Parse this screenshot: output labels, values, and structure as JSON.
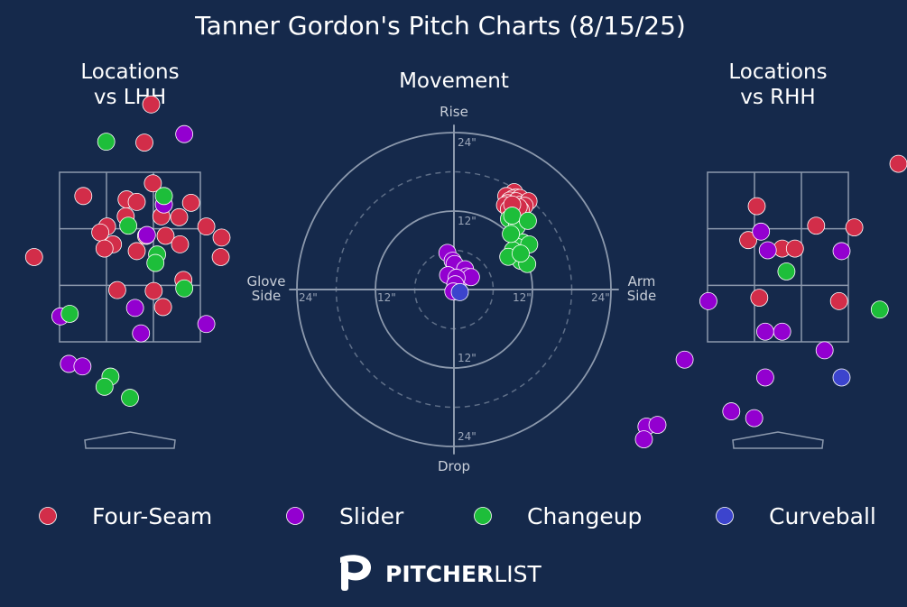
{
  "chart_data": {
    "type": "scatter",
    "title": "Tanner Gordon's Pitch Charts (8/15/25)",
    "colors": {
      "background": "#15294b",
      "Four-Seam": "#d22d49",
      "Slider": "#9300d0",
      "Changeup": "#1dbe3a",
      "Curveball": "#3c44cd"
    },
    "legend": {
      "placement": "bottom",
      "items": [
        "Four-Seam",
        "Slider",
        "Changeup",
        "Curveball"
      ]
    },
    "panels": [
      {
        "id": "lhh",
        "title": "Locations\nvs LHH",
        "x_unit": "ft from plate center",
        "y_unit": "ft above ground",
        "points": [
          {
            "pitch": "Four-Seam",
            "x": 0.25,
            "y": 4.3
          },
          {
            "pitch": "Four-Seam",
            "x": 0.17,
            "y": 3.85
          },
          {
            "pitch": "Four-Seam",
            "x": 0.27,
            "y": 3.37
          },
          {
            "pitch": "Four-Seam",
            "x": -0.55,
            "y": 3.22
          },
          {
            "pitch": "Four-Seam",
            "x": -0.04,
            "y": 3.18
          },
          {
            "pitch": "Four-Seam",
            "x": 0.08,
            "y": 3.15
          },
          {
            "pitch": "Four-Seam",
            "x": 0.72,
            "y": 3.14
          },
          {
            "pitch": "Four-Seam",
            "x": -0.05,
            "y": 2.98
          },
          {
            "pitch": "Four-Seam",
            "x": 0.37,
            "y": 2.98
          },
          {
            "pitch": "Four-Seam",
            "x": 0.58,
            "y": 2.97
          },
          {
            "pitch": "Four-Seam",
            "x": -0.27,
            "y": 2.86
          },
          {
            "pitch": "Four-Seam",
            "x": 0.9,
            "y": 2.86
          },
          {
            "pitch": "Four-Seam",
            "x": -0.35,
            "y": 2.79
          },
          {
            "pitch": "Four-Seam",
            "x": 0.19,
            "y": 2.75
          },
          {
            "pitch": "Four-Seam",
            "x": 0.42,
            "y": 2.75
          },
          {
            "pitch": "Four-Seam",
            "x": 1.08,
            "y": 2.73
          },
          {
            "pitch": "Four-Seam",
            "x": -0.2,
            "y": 2.65
          },
          {
            "pitch": "Four-Seam",
            "x": 0.59,
            "y": 2.65
          },
          {
            "pitch": "Four-Seam",
            "x": -0.3,
            "y": 2.6
          },
          {
            "pitch": "Four-Seam",
            "x": 0.08,
            "y": 2.57
          },
          {
            "pitch": "Four-Seam",
            "x": -1.13,
            "y": 2.5
          },
          {
            "pitch": "Four-Seam",
            "x": 1.07,
            "y": 2.5
          },
          {
            "pitch": "Four-Seam",
            "x": 0.63,
            "y": 2.23
          },
          {
            "pitch": "Four-Seam",
            "x": -0.15,
            "y": 2.11
          },
          {
            "pitch": "Four-Seam",
            "x": 0.28,
            "y": 2.1
          },
          {
            "pitch": "Four-Seam",
            "x": 0.39,
            "y": 1.91
          },
          {
            "pitch": "Slider",
            "x": 0.64,
            "y": 3.95
          },
          {
            "pitch": "Slider",
            "x": 0.4,
            "y": 3.12
          },
          {
            "pitch": "Slider",
            "x": 0.2,
            "y": 2.76
          },
          {
            "pitch": "Slider",
            "x": 0.06,
            "y": 1.9
          },
          {
            "pitch": "Slider",
            "x": -0.82,
            "y": 1.8
          },
          {
            "pitch": "Slider",
            "x": 0.9,
            "y": 1.71
          },
          {
            "pitch": "Slider",
            "x": 0.13,
            "y": 1.6
          },
          {
            "pitch": "Slider",
            "x": -0.72,
            "y": 1.24
          },
          {
            "pitch": "Slider",
            "x": -0.56,
            "y": 1.21
          },
          {
            "pitch": "Changeup",
            "x": -0.28,
            "y": 3.86
          },
          {
            "pitch": "Changeup",
            "x": 0.4,
            "y": 3.22
          },
          {
            "pitch": "Changeup",
            "x": -0.02,
            "y": 2.87
          },
          {
            "pitch": "Changeup",
            "x": 0.32,
            "y": 2.53
          },
          {
            "pitch": "Changeup",
            "x": 0.3,
            "y": 2.43
          },
          {
            "pitch": "Changeup",
            "x": 0.64,
            "y": 2.13
          },
          {
            "pitch": "Changeup",
            "x": -0.71,
            "y": 1.83
          },
          {
            "pitch": "Changeup",
            "x": -0.23,
            "y": 1.09
          },
          {
            "pitch": "Changeup",
            "x": -0.3,
            "y": 0.97
          },
          {
            "pitch": "Changeup",
            "x": -0.0,
            "y": 0.84
          }
        ]
      },
      {
        "id": "movement",
        "title": "Movement",
        "axis_labels": {
          "top": "Rise",
          "bottom": "Drop",
          "left": "Glove\nSide",
          "right": "Arm\nSide"
        },
        "ring_labels": [
          "12\"",
          "24\""
        ],
        "rings_in": [
          6,
          12,
          18,
          24
        ],
        "points": [
          {
            "pitch": "Four-Seam",
            "x": 9.2,
            "y": 14.9
          },
          {
            "pitch": "Four-Seam",
            "x": 8.0,
            "y": 14.3
          },
          {
            "pitch": "Four-Seam",
            "x": 9.5,
            "y": 14.1
          },
          {
            "pitch": "Four-Seam",
            "x": 9.0,
            "y": 13.9
          },
          {
            "pitch": "Four-Seam",
            "x": 10.1,
            "y": 14.0
          },
          {
            "pitch": "Four-Seam",
            "x": 8.5,
            "y": 13.6
          },
          {
            "pitch": "Four-Seam",
            "x": 9.5,
            "y": 13.5
          },
          {
            "pitch": "Four-Seam",
            "x": 8.2,
            "y": 13.2
          },
          {
            "pitch": "Four-Seam",
            "x": 10.2,
            "y": 13.0
          },
          {
            "pitch": "Four-Seam",
            "x": 11.4,
            "y": 13.5
          },
          {
            "pitch": "Four-Seam",
            "x": 9.1,
            "y": 12.8
          },
          {
            "pitch": "Four-Seam",
            "x": 10.8,
            "y": 12.8
          },
          {
            "pitch": "Four-Seam",
            "x": 7.8,
            "y": 12.9
          },
          {
            "pitch": "Four-Seam",
            "x": 8.4,
            "y": 12.3
          },
          {
            "pitch": "Four-Seam",
            "x": 10.2,
            "y": 12.2
          },
          {
            "pitch": "Four-Seam",
            "x": 9.2,
            "y": 12.0
          },
          {
            "pitch": "Four-Seam",
            "x": 9.9,
            "y": 12.6
          },
          {
            "pitch": "Four-Seam",
            "x": 8.9,
            "y": 13.0
          },
          {
            "pitch": "Changeup",
            "x": 10.5,
            "y": 7.2
          },
          {
            "pitch": "Changeup",
            "x": 9.7,
            "y": 6.5
          },
          {
            "pitch": "Changeup",
            "x": 9.0,
            "y": 6.0
          },
          {
            "pitch": "Changeup",
            "x": 10.2,
            "y": 4.4
          },
          {
            "pitch": "Changeup",
            "x": 11.2,
            "y": 3.9
          },
          {
            "pitch": "Changeup",
            "x": 8.3,
            "y": 5.0
          },
          {
            "pitch": "Changeup",
            "x": 8.4,
            "y": 10.8
          },
          {
            "pitch": "Changeup",
            "x": 9.6,
            "y": 9.6
          },
          {
            "pitch": "Changeup",
            "x": 8.9,
            "y": 11.3
          },
          {
            "pitch": "Changeup",
            "x": 8.7,
            "y": 8.5
          },
          {
            "pitch": "Changeup",
            "x": 11.5,
            "y": 6.9
          },
          {
            "pitch": "Changeup",
            "x": 11.3,
            "y": 10.5
          },
          {
            "pitch": "Changeup",
            "x": 10.2,
            "y": 5.5
          },
          {
            "pitch": "Slider",
            "x": -1.0,
            "y": 5.6
          },
          {
            "pitch": "Slider",
            "x": -0.2,
            "y": 4.4
          },
          {
            "pitch": "Slider",
            "x": 0.1,
            "y": 3.9
          },
          {
            "pitch": "Slider",
            "x": 1.7,
            "y": 3.1
          },
          {
            "pitch": "Slider",
            "x": 1.9,
            "y": 2.0
          },
          {
            "pitch": "Slider",
            "x": -0.9,
            "y": 2.2
          },
          {
            "pitch": "Slider",
            "x": 2.6,
            "y": 1.9
          },
          {
            "pitch": "Slider",
            "x": 0.4,
            "y": 1.8
          },
          {
            "pitch": "Slider",
            "x": 0.2,
            "y": 0.8
          },
          {
            "pitch": "Slider",
            "x": -0.1,
            "y": -0.3
          },
          {
            "pitch": "Curveball",
            "x": 0.9,
            "y": -0.4
          }
        ]
      },
      {
        "id": "rhh",
        "title": "Locations\nvs RHH",
        "x_unit": "ft from plate center",
        "y_unit": "ft above ground",
        "points": [
          {
            "pitch": "Four-Seam",
            "x": -0.25,
            "y": 3.1
          },
          {
            "pitch": "Four-Seam",
            "x": 0.45,
            "y": 2.87
          },
          {
            "pitch": "Four-Seam",
            "x": 0.9,
            "y": 2.85
          },
          {
            "pitch": "Four-Seam",
            "x": -0.35,
            "y": 2.7
          },
          {
            "pitch": "Four-Seam",
            "x": 0.05,
            "y": 2.6
          },
          {
            "pitch": "Four-Seam",
            "x": 0.2,
            "y": 2.6
          },
          {
            "pitch": "Four-Seam",
            "x": 1.42,
            "y": 3.6
          },
          {
            "pitch": "Four-Seam",
            "x": 1.8,
            "y": 2.4
          },
          {
            "pitch": "Four-Seam",
            "x": -0.22,
            "y": 2.02
          },
          {
            "pitch": "Four-Seam",
            "x": 0.72,
            "y": 1.98
          },
          {
            "pitch": "Slider",
            "x": -0.2,
            "y": 2.8
          },
          {
            "pitch": "Slider",
            "x": -0.12,
            "y": 2.58
          },
          {
            "pitch": "Slider",
            "x": 0.75,
            "y": 2.57
          },
          {
            "pitch": "Slider",
            "x": -0.82,
            "y": 1.98
          },
          {
            "pitch": "Slider",
            "x": -0.15,
            "y": 1.62
          },
          {
            "pitch": "Slider",
            "x": 0.05,
            "y": 1.62
          },
          {
            "pitch": "Slider",
            "x": 0.55,
            "y": 1.4
          },
          {
            "pitch": "Slider",
            "x": -1.1,
            "y": 1.29
          },
          {
            "pitch": "Slider",
            "x": -0.15,
            "y": 1.08
          },
          {
            "pitch": "Slider",
            "x": -0.55,
            "y": 0.68
          },
          {
            "pitch": "Slider",
            "x": -0.28,
            "y": 0.6
          },
          {
            "pitch": "Slider",
            "x": -1.55,
            "y": 0.5
          },
          {
            "pitch": "Slider",
            "x": -1.42,
            "y": 0.52
          },
          {
            "pitch": "Slider",
            "x": -1.58,
            "y": 0.35
          },
          {
            "pitch": "Changeup",
            "x": 0.1,
            "y": 2.33
          },
          {
            "pitch": "Changeup",
            "x": 1.2,
            "y": 1.88
          },
          {
            "pitch": "Curveball",
            "x": 0.75,
            "y": 1.08
          }
        ]
      }
    ]
  },
  "brand": {
    "name_bold": "PITCHER",
    "name_light": "LIST"
  }
}
